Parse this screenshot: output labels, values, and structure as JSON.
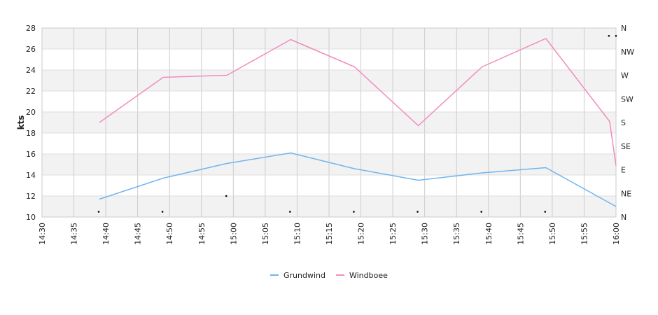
{
  "chart_data": {
    "type": "line",
    "ylabel": "kts",
    "ylim": [
      10,
      28
    ],
    "y_ticks": [
      "10",
      "12",
      "14",
      "16",
      "18",
      "20",
      "22",
      "24",
      "26",
      "28"
    ],
    "x_ticks": [
      "14:30",
      "14:35",
      "14:40",
      "14:45",
      "14:50",
      "14:55",
      "15:00",
      "15:05",
      "15:10",
      "15:15",
      "15:20",
      "15:25",
      "15:30",
      "15:35",
      "15:40",
      "15:45",
      "15:50",
      "15:55",
      "16:00"
    ],
    "right_axis_labels": [
      "N",
      "NE",
      "E",
      "SE",
      "S",
      "SW",
      "W",
      "NW",
      "N"
    ],
    "grid": true,
    "legend_position": "bottom-center",
    "series": [
      {
        "name": "Grundwind",
        "color": "#72b4ef",
        "x": [
          "14:39",
          "14:49",
          "14:59",
          "15:09",
          "15:19",
          "15:29",
          "15:39",
          "15:49",
          "16:00"
        ],
        "values": [
          11.7,
          13.7,
          15.1,
          16.1,
          14.6,
          13.5,
          14.2,
          14.7,
          11.0
        ]
      },
      {
        "name": "Windboee",
        "color": "#f28bbd",
        "x": [
          "14:39",
          "14:49",
          "14:59",
          "15:09",
          "15:19",
          "15:29",
          "15:39",
          "15:49",
          "15:59",
          "16:00"
        ],
        "values": [
          19.0,
          23.3,
          23.5,
          26.9,
          24.3,
          18.7,
          24.3,
          27.0,
          19.1,
          14.9
        ]
      }
    ],
    "direction_points": {
      "x": [
        "14:39",
        "14:49",
        "14:59",
        "15:09",
        "15:19",
        "15:29",
        "15:39",
        "15:49",
        "15:59",
        "16:00"
      ],
      "values": [
        "N",
        "N",
        "NE",
        "N",
        "N",
        "N",
        "N",
        "N",
        "NW",
        "NW"
      ],
      "degrees": [
        10,
        10,
        40,
        10,
        10,
        10,
        10,
        10,
        345,
        345
      ]
    }
  }
}
